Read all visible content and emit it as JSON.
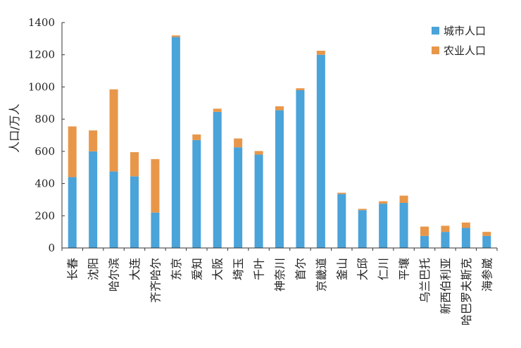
{
  "chart_data": {
    "type": "bar",
    "stacked": true,
    "ylabel": "人口/万人",
    "ylim": [
      0,
      1400
    ],
    "yticks": [
      0,
      200,
      400,
      600,
      800,
      1000,
      1200,
      1400
    ],
    "grid": false,
    "legend_position": "top-right",
    "categories": [
      "长春",
      "沈阳",
      "哈尔滨",
      "大连",
      "齐齐哈尔",
      "东京",
      "爱知",
      "大阪",
      "埼玉",
      "千叶",
      "神奈川",
      "首尔",
      "京畿道",
      "釜山",
      "大邱",
      "仁川",
      "平壤",
      "乌兰巴托",
      "新西伯利亚",
      "哈巴罗夫斯克",
      "海参崴"
    ],
    "series": [
      {
        "name": "城市人口",
        "color": "#4aa3d9",
        "values": [
          440,
          600,
          475,
          445,
          220,
          1310,
          670,
          845,
          625,
          580,
          855,
          980,
          1200,
          335,
          235,
          275,
          280,
          75,
          100,
          125,
          75
        ]
      },
      {
        "name": "农业人口",
        "color": "#e8974a",
        "values": [
          315,
          130,
          510,
          150,
          332,
          10,
          35,
          20,
          55,
          22,
          25,
          12,
          25,
          8,
          8,
          15,
          45,
          58,
          38,
          33,
          25
        ]
      }
    ]
  }
}
